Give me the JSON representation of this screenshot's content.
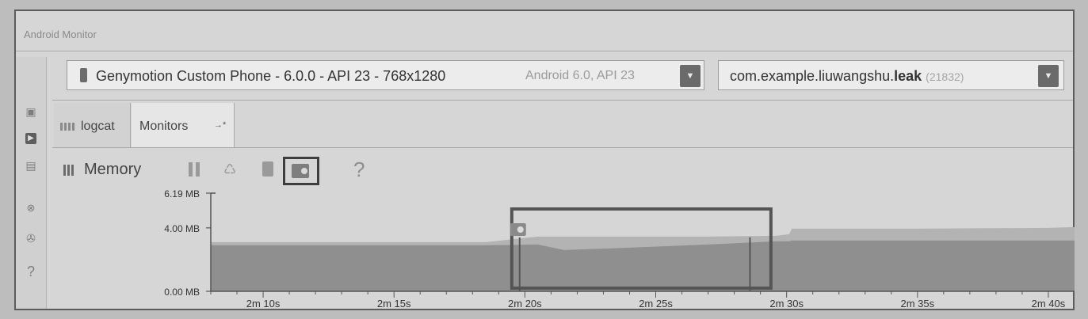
{
  "window": {
    "title": "Android Monitor"
  },
  "device_selector": {
    "name": "Genymotion Custom Phone - 6.0.0 - API 23 - 768x1280",
    "subtitle": "Android 6.0, API 23",
    "dropdown_icon": "chevron-down-icon"
  },
  "app_selector": {
    "package_prefix": "com.example.liuwangshu.",
    "package_bold": "leak",
    "pid": "(21832)",
    "dropdown_icon": "chevron-down-icon"
  },
  "tabs": [
    {
      "label": "logcat",
      "icon": "logcat-icon"
    },
    {
      "label": "Monitors",
      "icon": "pin-icon",
      "pin_glyph": "→*"
    }
  ],
  "memory_toolbar": {
    "label": "Memory",
    "buttons": [
      "pause-icon",
      "gc-icon",
      "heap-dump-icon",
      "allocation-tracking-icon"
    ],
    "help": "?"
  },
  "left_toolbar": {
    "icons": [
      "screenshot-icon",
      "screen-record-icon",
      "system-info-icon",
      "terminate-icon",
      "settings-icon",
      "help-icon"
    ],
    "help": "?"
  },
  "chart_data": {
    "type": "area",
    "title": "",
    "xlabel": "",
    "ylabel": "",
    "y_ticks": [
      "6.19 MB",
      "4.00 MB",
      "0.00 MB"
    ],
    "x_ticks": [
      "2m 10s",
      "2m 15s",
      "2m 20s",
      "2m 25s",
      "2m 30s",
      "2m 35s",
      "2m 40s"
    ],
    "xlim_seconds": [
      128,
      161
    ],
    "ylim_mb": [
      0,
      6.19
    ],
    "x_seconds": [
      128,
      138.5,
      140.5,
      141.5,
      144,
      147,
      149.6,
      150.1,
      150.2,
      155,
      160,
      161
    ],
    "series": [
      {
        "values": [
          2.9,
          2.9,
          2.95,
          2.6,
          2.75,
          2.95,
          3.15,
          3.15,
          3.2,
          3.2,
          3.2,
          3.2
        ]
      },
      {
        "values": [
          3.1,
          3.1,
          3.45,
          3.45,
          3.45,
          3.45,
          3.5,
          3.6,
          3.95,
          3.95,
          4.0,
          4.05
        ]
      }
    ],
    "allocation_markers_seconds": [
      139.8,
      148.6
    ],
    "grid": false,
    "colors": {
      "used": "#8f8f8f",
      "allocated": "#b3b3b3",
      "axis": "#555555"
    }
  }
}
